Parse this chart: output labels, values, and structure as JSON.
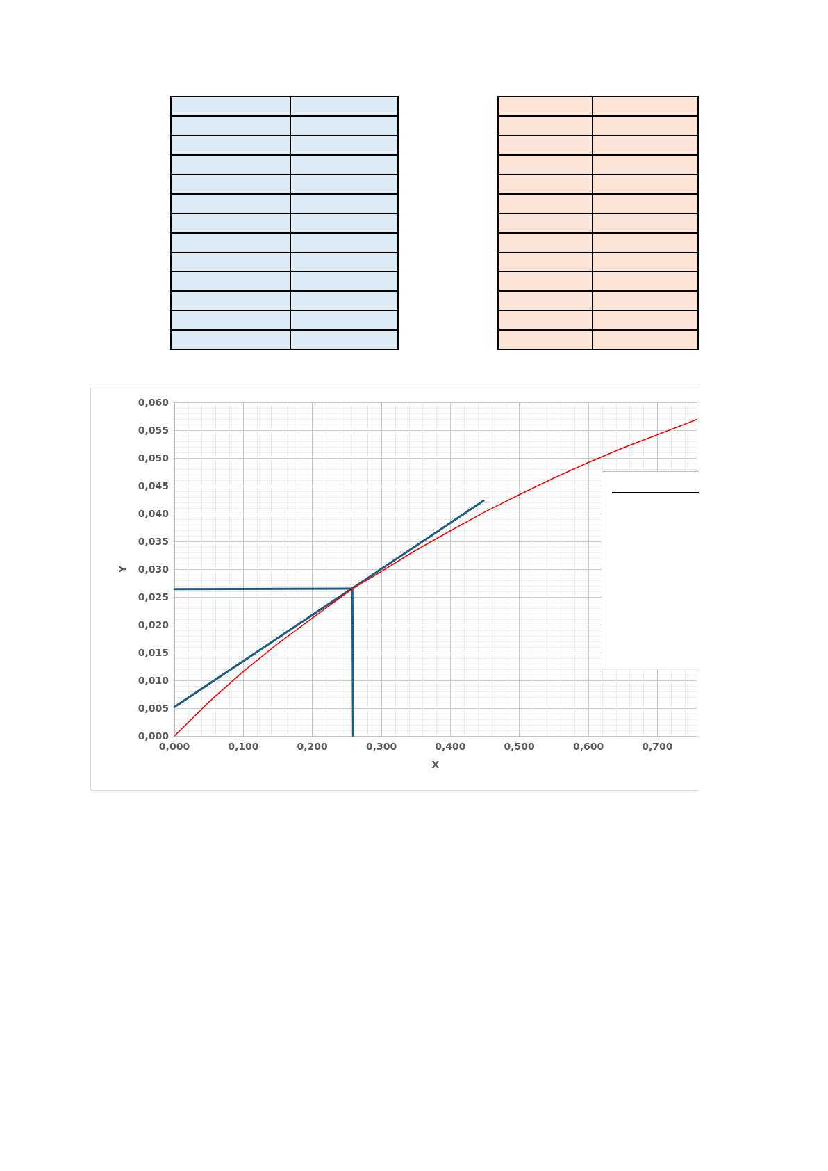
{
  "chart_data": {
    "type": "line",
    "xlabel": "X",
    "ylabel": "Y",
    "xlim": [
      0,
      0.757
    ],
    "ylim": [
      0,
      0.06
    ],
    "xticks": [
      {
        "value": 0,
        "label": "0,000"
      },
      {
        "value": 0.1,
        "label": "0,100"
      },
      {
        "value": 0.2,
        "label": "0,200"
      },
      {
        "value": 0.3,
        "label": "0,300"
      },
      {
        "value": 0.4,
        "label": "0,400"
      },
      {
        "value": 0.5,
        "label": "0,500"
      },
      {
        "value": 0.6,
        "label": "0,600"
      },
      {
        "value": 0.7,
        "label": "0,700"
      }
    ],
    "yticks": [
      {
        "value": 0,
        "label": "0,000"
      },
      {
        "value": 0.005,
        "label": "0,005"
      },
      {
        "value": 0.01,
        "label": "0,010"
      },
      {
        "value": 0.015,
        "label": "0,015"
      },
      {
        "value": 0.02,
        "label": "0,020"
      },
      {
        "value": 0.025,
        "label": "0,025"
      },
      {
        "value": 0.03,
        "label": "0,030"
      },
      {
        "value": 0.035,
        "label": "0,035"
      },
      {
        "value": 0.04,
        "label": "0,040"
      },
      {
        "value": 0.045,
        "label": "0,045"
      },
      {
        "value": 0.05,
        "label": "0,050"
      },
      {
        "value": 0.055,
        "label": "0,055"
      },
      {
        "value": 0.06,
        "label": "0,060"
      }
    ],
    "grid": true,
    "marker": "none",
    "line_style": "solid",
    "series": [
      {
        "color": "#ff0000",
        "x": [
          0,
          0.05,
          0.1,
          0.15,
          0.2,
          0.258,
          0.3,
          0.35,
          0.4,
          0.45,
          0.5,
          0.55,
          0.6,
          0.65,
          0.7,
          0.757
        ],
        "values": [
          0,
          0.0061,
          0.0116,
          0.0166,
          0.0212,
          0.0265,
          0.0296,
          0.0334,
          0.0369,
          0.0403,
          0.0434,
          0.0464,
          0.0492,
          0.0518,
          0.0542,
          0.0569
        ]
      },
      {
        "color": "#1f5c82",
        "x": [
          0,
          0.448
        ],
        "values": [
          0.0052,
          0.0423
        ]
      },
      {
        "color": "#1f5c82",
        "x": [
          0,
          0.258
        ],
        "values": [
          0.0264,
          0.0265
        ]
      },
      {
        "color": "#1f5c82",
        "x": [
          0.258,
          0.259
        ],
        "values": [
          0.0265,
          0
        ]
      }
    ]
  }
}
